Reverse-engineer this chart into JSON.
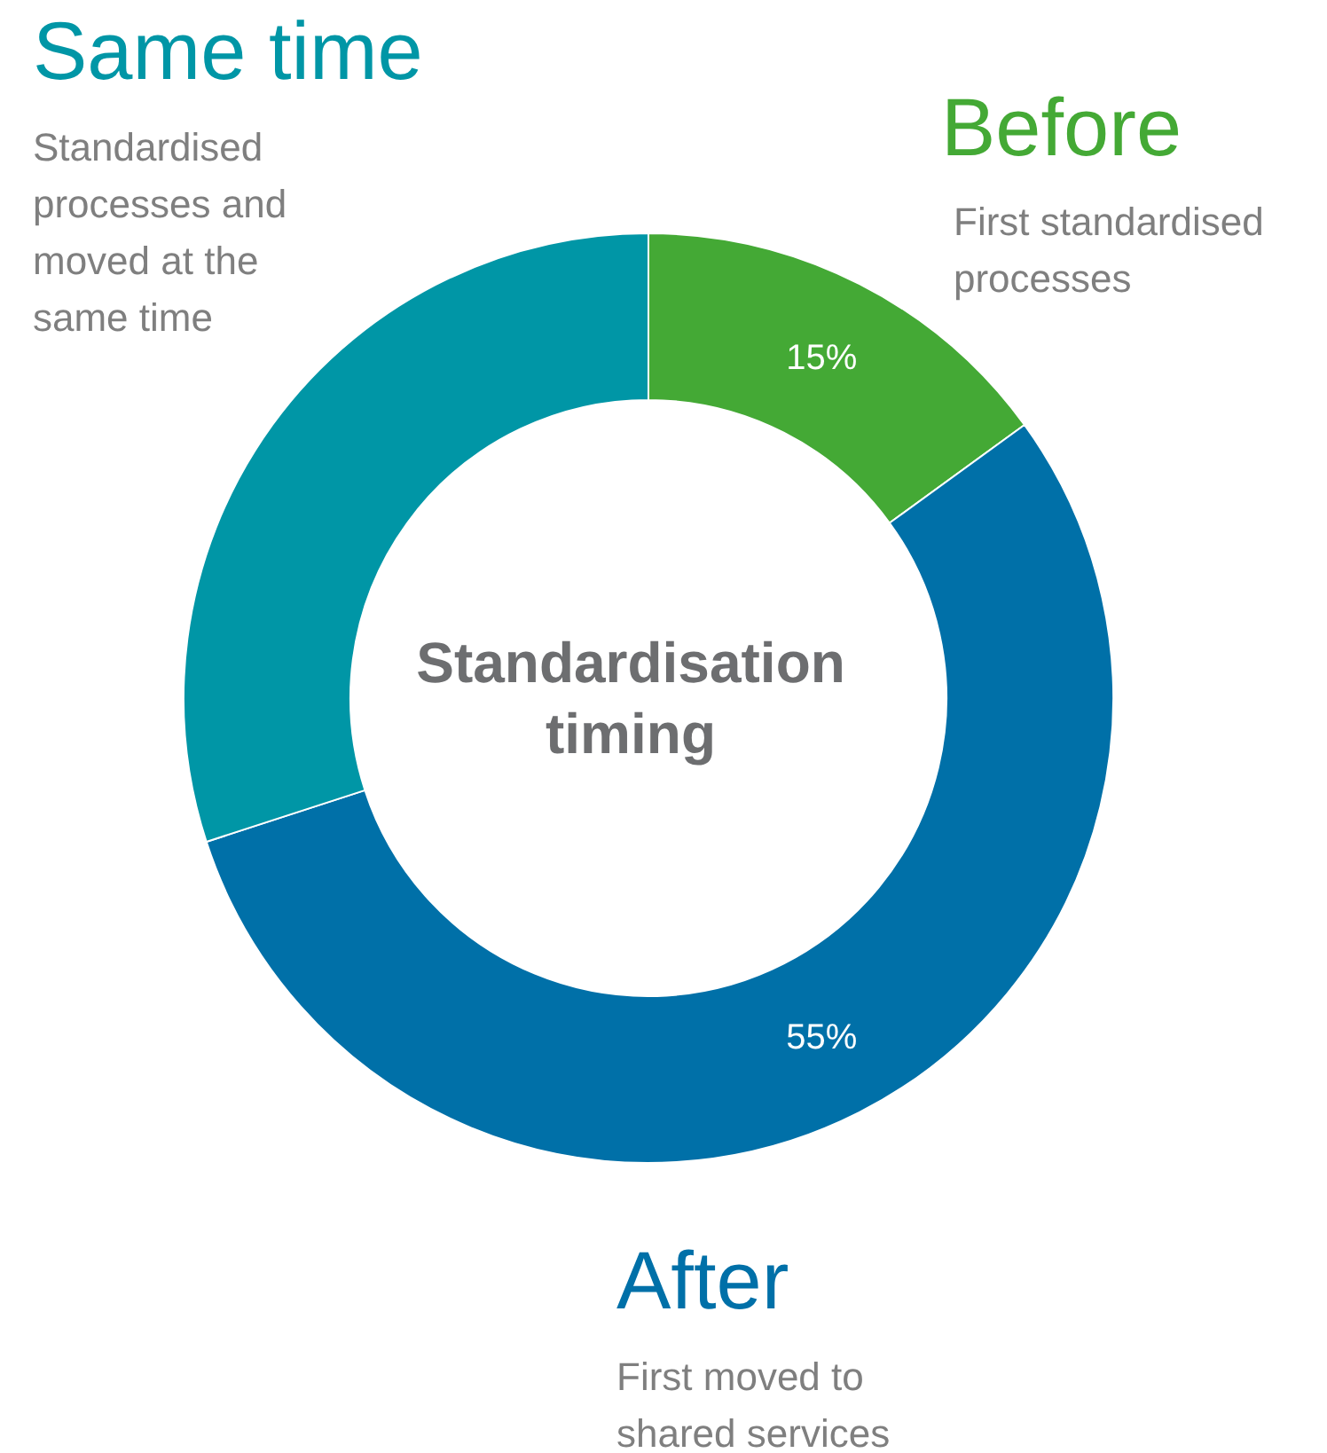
{
  "chart_data": {
    "type": "donut",
    "title": "Standardisation timing",
    "categories": [
      "Before",
      "After",
      "Same time"
    ],
    "values": [
      15,
      55,
      30
    ],
    "colors": [
      "#44a935",
      "#0070a8",
      "#0096a6"
    ],
    "value_labels": [
      "15%",
      "55%",
      null
    ],
    "annotations": [
      "First standardised processes",
      "First moved to shared services",
      "Standardised processes and moved at the same time"
    ]
  }
}
